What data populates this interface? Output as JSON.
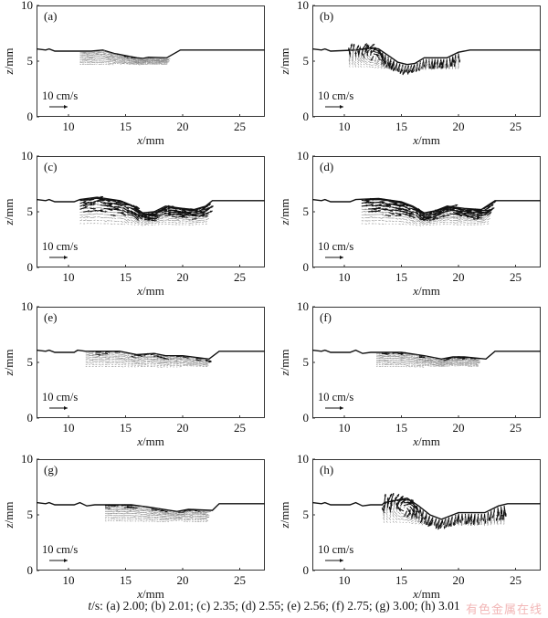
{
  "chart_data": [
    {
      "type": "vector-field",
      "panel_label": "(a)",
      "time_s": 2.0,
      "xlabel_var": "x",
      "xlabel_unit": "/mm",
      "ylabel_var": "z",
      "ylabel_unit": "/mm",
      "xlim": [
        7.2,
        27.2
      ],
      "ylim": [
        0,
        10
      ],
      "xticks": [
        10,
        15,
        20,
        25
      ],
      "yticks": [
        0,
        5,
        10
      ],
      "scale_label": "10 cm/s",
      "surface": [
        [
          7.2,
          6.1
        ],
        [
          8,
          6.0
        ],
        [
          8.3,
          6.1
        ],
        [
          8.8,
          5.9
        ],
        [
          12,
          5.9
        ],
        [
          13,
          6.0
        ],
        [
          14,
          5.7
        ],
        [
          15,
          5.5
        ],
        [
          16,
          5.3
        ],
        [
          16.5,
          5.25
        ],
        [
          17,
          5.35
        ],
        [
          18.6,
          5.3
        ],
        [
          19.8,
          6.0
        ],
        [
          27.2,
          6.0
        ]
      ],
      "flow_region": {
        "x": [
          11,
          18.5
        ],
        "z": [
          4.7,
          6.0
        ],
        "intensity": 0.35,
        "swirl": 0
      }
    },
    {
      "type": "vector-field",
      "panel_label": "(b)",
      "time_s": 2.01,
      "xlabel_var": "x",
      "xlabel_unit": "/mm",
      "ylabel_var": "z",
      "ylabel_unit": "/mm",
      "xlim": [
        7.2,
        27.2
      ],
      "ylim": [
        0,
        10
      ],
      "xticks": [
        10,
        15,
        20,
        25
      ],
      "yticks": [
        0,
        5,
        10
      ],
      "scale_label": "10 cm/s",
      "surface": [
        [
          7.2,
          6.1
        ],
        [
          8,
          6.0
        ],
        [
          8.3,
          6.1
        ],
        [
          8.8,
          5.9
        ],
        [
          11,
          6.0
        ],
        [
          12.3,
          6.2
        ],
        [
          13,
          6.1
        ],
        [
          14,
          5.4
        ],
        [
          14.7,
          4.9
        ],
        [
          15.5,
          4.7
        ],
        [
          16.2,
          4.8
        ],
        [
          17,
          5.3
        ],
        [
          19,
          5.3
        ],
        [
          20,
          5.8
        ],
        [
          21,
          6.0
        ],
        [
          27.2,
          6.0
        ]
      ],
      "flow_region": {
        "x": [
          10.5,
          20
        ],
        "z": [
          4.4,
          6.9
        ],
        "intensity": 0.8,
        "swirl": 12.5
      }
    },
    {
      "type": "vector-field",
      "panel_label": "(c)",
      "time_s": 2.35,
      "xlabel_var": "x",
      "xlabel_unit": "/mm",
      "ylabel_var": "z",
      "ylabel_unit": "/mm",
      "xlim": [
        7.2,
        27.2
      ],
      "ylim": [
        0,
        10
      ],
      "xticks": [
        10,
        15,
        20,
        25
      ],
      "yticks": [
        0,
        5,
        10
      ],
      "scale_label": "10 cm/s",
      "surface": [
        [
          7.2,
          6.1
        ],
        [
          8,
          6.0
        ],
        [
          8.3,
          6.1
        ],
        [
          8.8,
          5.9
        ],
        [
          10.5,
          5.9
        ],
        [
          11,
          6.1
        ],
        [
          12.5,
          6.3
        ],
        [
          14.5,
          6.0
        ],
        [
          15.5,
          5.6
        ],
        [
          16.5,
          4.9
        ],
        [
          17.5,
          5.0
        ],
        [
          18.5,
          5.5
        ],
        [
          20,
          5.3
        ],
        [
          21,
          5.2
        ],
        [
          22,
          5.5
        ],
        [
          22.6,
          6.0
        ],
        [
          27.2,
          6.0
        ]
      ],
      "flow_region": {
        "x": [
          11,
          22
        ],
        "z": [
          3.8,
          6.8
        ],
        "intensity": 1.0,
        "swirl": 0
      }
    },
    {
      "type": "vector-field",
      "panel_label": "(d)",
      "time_s": 2.55,
      "xlabel_var": "x",
      "xlabel_unit": "/mm",
      "ylabel_var": "z",
      "ylabel_unit": "/mm",
      "xlim": [
        7.2,
        27.2
      ],
      "ylim": [
        0,
        10
      ],
      "xticks": [
        10,
        15,
        20,
        25
      ],
      "yticks": [
        0,
        5,
        10
      ],
      "scale_label": "10 cm/s",
      "surface": [
        [
          7.2,
          6.1
        ],
        [
          8,
          6.0
        ],
        [
          8.3,
          6.1
        ],
        [
          8.8,
          5.9
        ],
        [
          10.5,
          5.9
        ],
        [
          11,
          6.1
        ],
        [
          13,
          6.2
        ],
        [
          15,
          5.9
        ],
        [
          16,
          5.5
        ],
        [
          17,
          4.9
        ],
        [
          18,
          5.1
        ],
        [
          19,
          5.5
        ],
        [
          20.5,
          5.3
        ],
        [
          22,
          5.2
        ],
        [
          22.6,
          5.6
        ],
        [
          23.2,
          6.0
        ],
        [
          27.2,
          6.0
        ]
      ],
      "flow_region": {
        "x": [
          11.5,
          22.5
        ],
        "z": [
          3.8,
          6.8
        ],
        "intensity": 1.0,
        "swirl": 0
      }
    },
    {
      "type": "vector-field",
      "panel_label": "(e)",
      "time_s": 2.56,
      "xlabel_var": "x",
      "xlabel_unit": "/mm",
      "ylabel_var": "z",
      "ylabel_unit": "/mm",
      "xlim": [
        7.2,
        27.2
      ],
      "ylim": [
        0,
        10
      ],
      "xticks": [
        10,
        15,
        20,
        25
      ],
      "yticks": [
        0,
        5,
        10
      ],
      "scale_label": "10 cm/s",
      "surface": [
        [
          7.2,
          6.1
        ],
        [
          8,
          6.0
        ],
        [
          8.3,
          6.1
        ],
        [
          8.8,
          5.9
        ],
        [
          10.5,
          5.9
        ],
        [
          10.8,
          6.1
        ],
        [
          11.5,
          6.0
        ],
        [
          14.5,
          6.0
        ],
        [
          16,
          5.7
        ],
        [
          17.5,
          5.8
        ],
        [
          18.5,
          5.6
        ],
        [
          20,
          5.6
        ],
        [
          22.3,
          5.3
        ],
        [
          23.2,
          6.0
        ],
        [
          27.2,
          6.0
        ]
      ],
      "flow_region": {
        "x": [
          11.5,
          22
        ],
        "z": [
          4.6,
          6.0
        ],
        "intensity": 0.45,
        "swirl": 0
      }
    },
    {
      "type": "vector-field",
      "panel_label": "(f)",
      "time_s": 2.75,
      "xlabel_var": "x",
      "xlabel_unit": "/mm",
      "ylabel_var": "z",
      "ylabel_unit": "/mm",
      "xlim": [
        7.2,
        27.2
      ],
      "ylim": [
        0,
        10
      ],
      "xticks": [
        10,
        15,
        20,
        25
      ],
      "yticks": [
        0,
        5,
        10
      ],
      "scale_label": "10 cm/s",
      "surface": [
        [
          7.2,
          6.1
        ],
        [
          8,
          6.0
        ],
        [
          8.3,
          6.1
        ],
        [
          8.8,
          5.9
        ],
        [
          10.5,
          5.9
        ],
        [
          11,
          6.1
        ],
        [
          11.6,
          5.8
        ],
        [
          12.3,
          5.9
        ],
        [
          15,
          5.9
        ],
        [
          17,
          5.6
        ],
        [
          18.5,
          5.3
        ],
        [
          19.5,
          5.5
        ],
        [
          20.5,
          5.5
        ],
        [
          22.4,
          5.3
        ],
        [
          23.2,
          6.0
        ],
        [
          27.2,
          6.0
        ]
      ],
      "flow_region": {
        "x": [
          12.8,
          21.5
        ],
        "z": [
          4.6,
          6.0
        ],
        "intensity": 0.45,
        "swirl": 0
      }
    },
    {
      "type": "vector-field",
      "panel_label": "(g)",
      "time_s": 3.0,
      "xlabel_var": "x",
      "xlabel_unit": "/mm",
      "ylabel_var": "z",
      "ylabel_unit": "/mm",
      "xlim": [
        7.2,
        27.2
      ],
      "ylim": [
        0,
        10
      ],
      "xticks": [
        10,
        15,
        20,
        25
      ],
      "yticks": [
        0,
        5,
        10
      ],
      "scale_label": "10 cm/s",
      "surface": [
        [
          7.2,
          6.1
        ],
        [
          8,
          6.0
        ],
        [
          8.3,
          6.1
        ],
        [
          8.8,
          5.9
        ],
        [
          10.5,
          5.9
        ],
        [
          11,
          6.1
        ],
        [
          11.6,
          5.8
        ],
        [
          12.3,
          5.9
        ],
        [
          15.5,
          5.9
        ],
        [
          17,
          5.7
        ],
        [
          19.5,
          5.3
        ],
        [
          20.5,
          5.5
        ],
        [
          22.6,
          5.4
        ],
        [
          23.2,
          6.0
        ],
        [
          27.2,
          6.0
        ]
      ],
      "flow_region": {
        "x": [
          13.2,
          22
        ],
        "z": [
          4.4,
          6.1
        ],
        "intensity": 0.45,
        "swirl": 0
      }
    },
    {
      "type": "vector-field",
      "panel_label": "(h)",
      "time_s": 3.01,
      "xlabel_var": "x",
      "xlabel_unit": "/mm",
      "ylabel_var": "z",
      "ylabel_unit": "/mm",
      "xlim": [
        7.2,
        27.2
      ],
      "ylim": [
        0,
        10
      ],
      "xticks": [
        10,
        15,
        20,
        25
      ],
      "yticks": [
        0,
        5,
        10
      ],
      "scale_label": "10 cm/s",
      "surface": [
        [
          7.2,
          6.1
        ],
        [
          8,
          6.0
        ],
        [
          8.3,
          6.1
        ],
        [
          8.8,
          5.9
        ],
        [
          10.5,
          5.9
        ],
        [
          11,
          6.1
        ],
        [
          11.6,
          5.8
        ],
        [
          12.3,
          5.9
        ],
        [
          13.3,
          5.9
        ],
        [
          13.5,
          6.1
        ],
        [
          15.5,
          6.5
        ],
        [
          16.5,
          5.8
        ],
        [
          17.5,
          5.0
        ],
        [
          18.5,
          4.6
        ],
        [
          19.5,
          5.0
        ],
        [
          20,
          5.2
        ],
        [
          22.3,
          5.2
        ],
        [
          23.5,
          5.8
        ],
        [
          24.3,
          6.0
        ],
        [
          27.2,
          6.0
        ]
      ],
      "flow_region": {
        "x": [
          13.5,
          24
        ],
        "z": [
          4.2,
          6.9
        ],
        "intensity": 0.9,
        "swirl": 15.3
      }
    }
  ],
  "caption": {
    "var": "t",
    "text": "/s: (a) 2.00; (b) 2.01; (c) 2.35; (d) 2.55; (e) 2.56; (f) 2.75; (g) 3.00; (h) 3.01"
  },
  "watermark": "有色金属在线"
}
